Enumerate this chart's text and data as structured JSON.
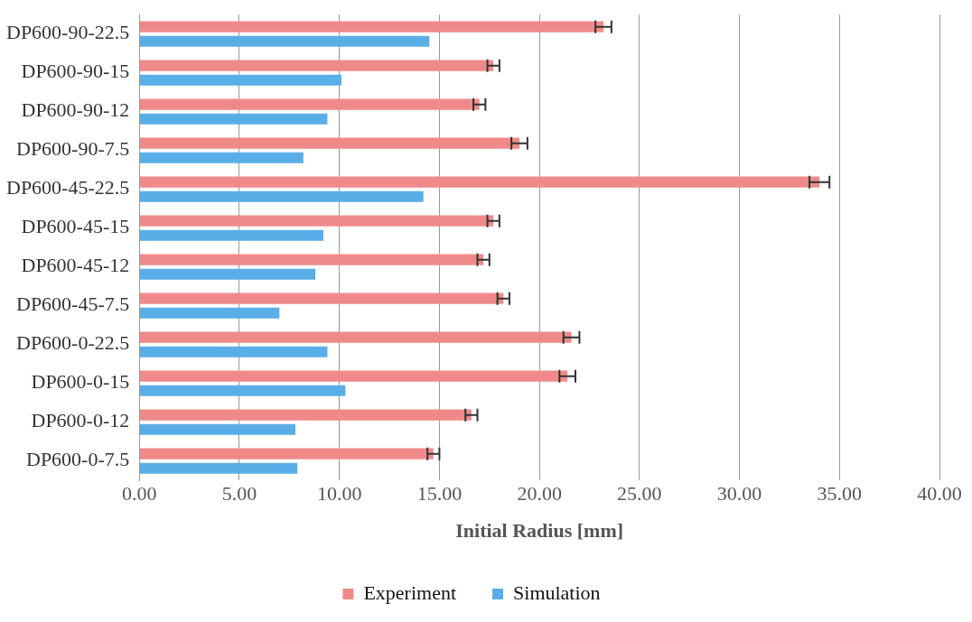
{
  "chart_data": {
    "type": "bar",
    "orientation": "horizontal",
    "xlabel": "Initial Radius [mm]",
    "categories": [
      "DP600-90-22.5",
      "DP600-90-15",
      "DP600-90-12",
      "DP600-90-7.5",
      "DP600-45-22.5",
      "DP600-45-15",
      "DP600-45-12",
      "DP600-45-7.5",
      "DP600-0-22.5",
      "DP600-0-15",
      "DP600-0-12",
      "DP600-0-7.5"
    ],
    "series": [
      {
        "name": "Experiment",
        "color": "#f08a8a",
        "values": [
          23.2,
          17.7,
          17.0,
          19.0,
          34.0,
          17.7,
          17.2,
          18.2,
          21.6,
          21.4,
          16.6,
          14.7
        ],
        "errors": [
          0.4,
          0.3,
          0.3,
          0.4,
          0.5,
          0.3,
          0.3,
          0.3,
          0.4,
          0.4,
          0.3,
          0.3
        ]
      },
      {
        "name": "Simulation",
        "color": "#5aaee8",
        "values": [
          14.5,
          10.1,
          9.4,
          8.2,
          14.2,
          9.2,
          8.8,
          7.0,
          9.4,
          10.3,
          7.8,
          7.9
        ]
      }
    ],
    "xlim": [
      0,
      40
    ],
    "xticks": [
      {
        "value": 0,
        "label": "0.00"
      },
      {
        "value": 5,
        "label": "5.00"
      },
      {
        "value": 10,
        "label": "10.00"
      },
      {
        "value": 15,
        "label": "15.00"
      },
      {
        "value": 20,
        "label": "20.00"
      },
      {
        "value": 25,
        "label": "25.00"
      },
      {
        "value": 30,
        "label": "30.00"
      },
      {
        "value": 35,
        "label": "35.00"
      },
      {
        "value": 40,
        "label": "40.00"
      }
    ],
    "grid": "x",
    "legend": "bottom"
  }
}
